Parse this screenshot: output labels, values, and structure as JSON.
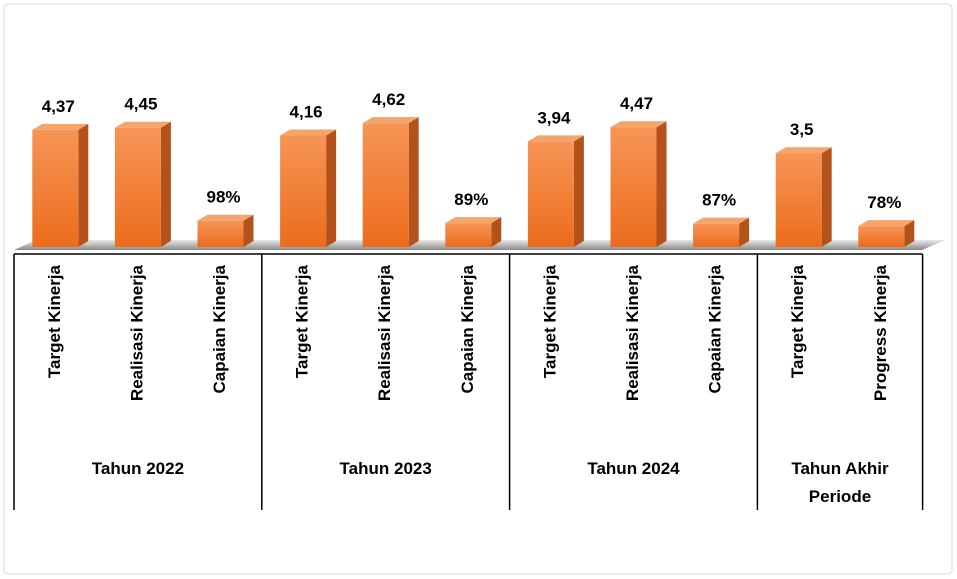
{
  "chart_data": {
    "type": "bar",
    "color": "#f07a2a",
    "groups": [
      {
        "name": "Tahun 2022",
        "categories": [
          "Target Kinerja",
          "Realisasi Kinerja",
          "Capaian Kinerja"
        ],
        "values": [
          4.37,
          4.45,
          0.98
        ],
        "value_labels": [
          "4,37",
          "4,45",
          "98%"
        ]
      },
      {
        "name": "Tahun 2023",
        "categories": [
          "Target Kinerja",
          "Realisasi Kinerja",
          "Capaian Kinerja"
        ],
        "values": [
          4.16,
          4.62,
          0.89
        ],
        "value_labels": [
          "4,16",
          "4,62",
          "89%"
        ]
      },
      {
        "name": "Tahun 2024",
        "categories": [
          "Target Kinerja",
          "Realisasi Kinerja",
          "Capaian Kinerja"
        ],
        "values": [
          3.94,
          4.47,
          0.87
        ],
        "value_labels": [
          "3,94",
          "4,47",
          "87%"
        ]
      },
      {
        "name": "Tahun Akhir Periode",
        "categories": [
          "Target Kinerja",
          "Progress Kinerja"
        ],
        "values": [
          3.5,
          0.78
        ],
        "value_labels": [
          "3,5",
          "78%"
        ]
      }
    ]
  }
}
